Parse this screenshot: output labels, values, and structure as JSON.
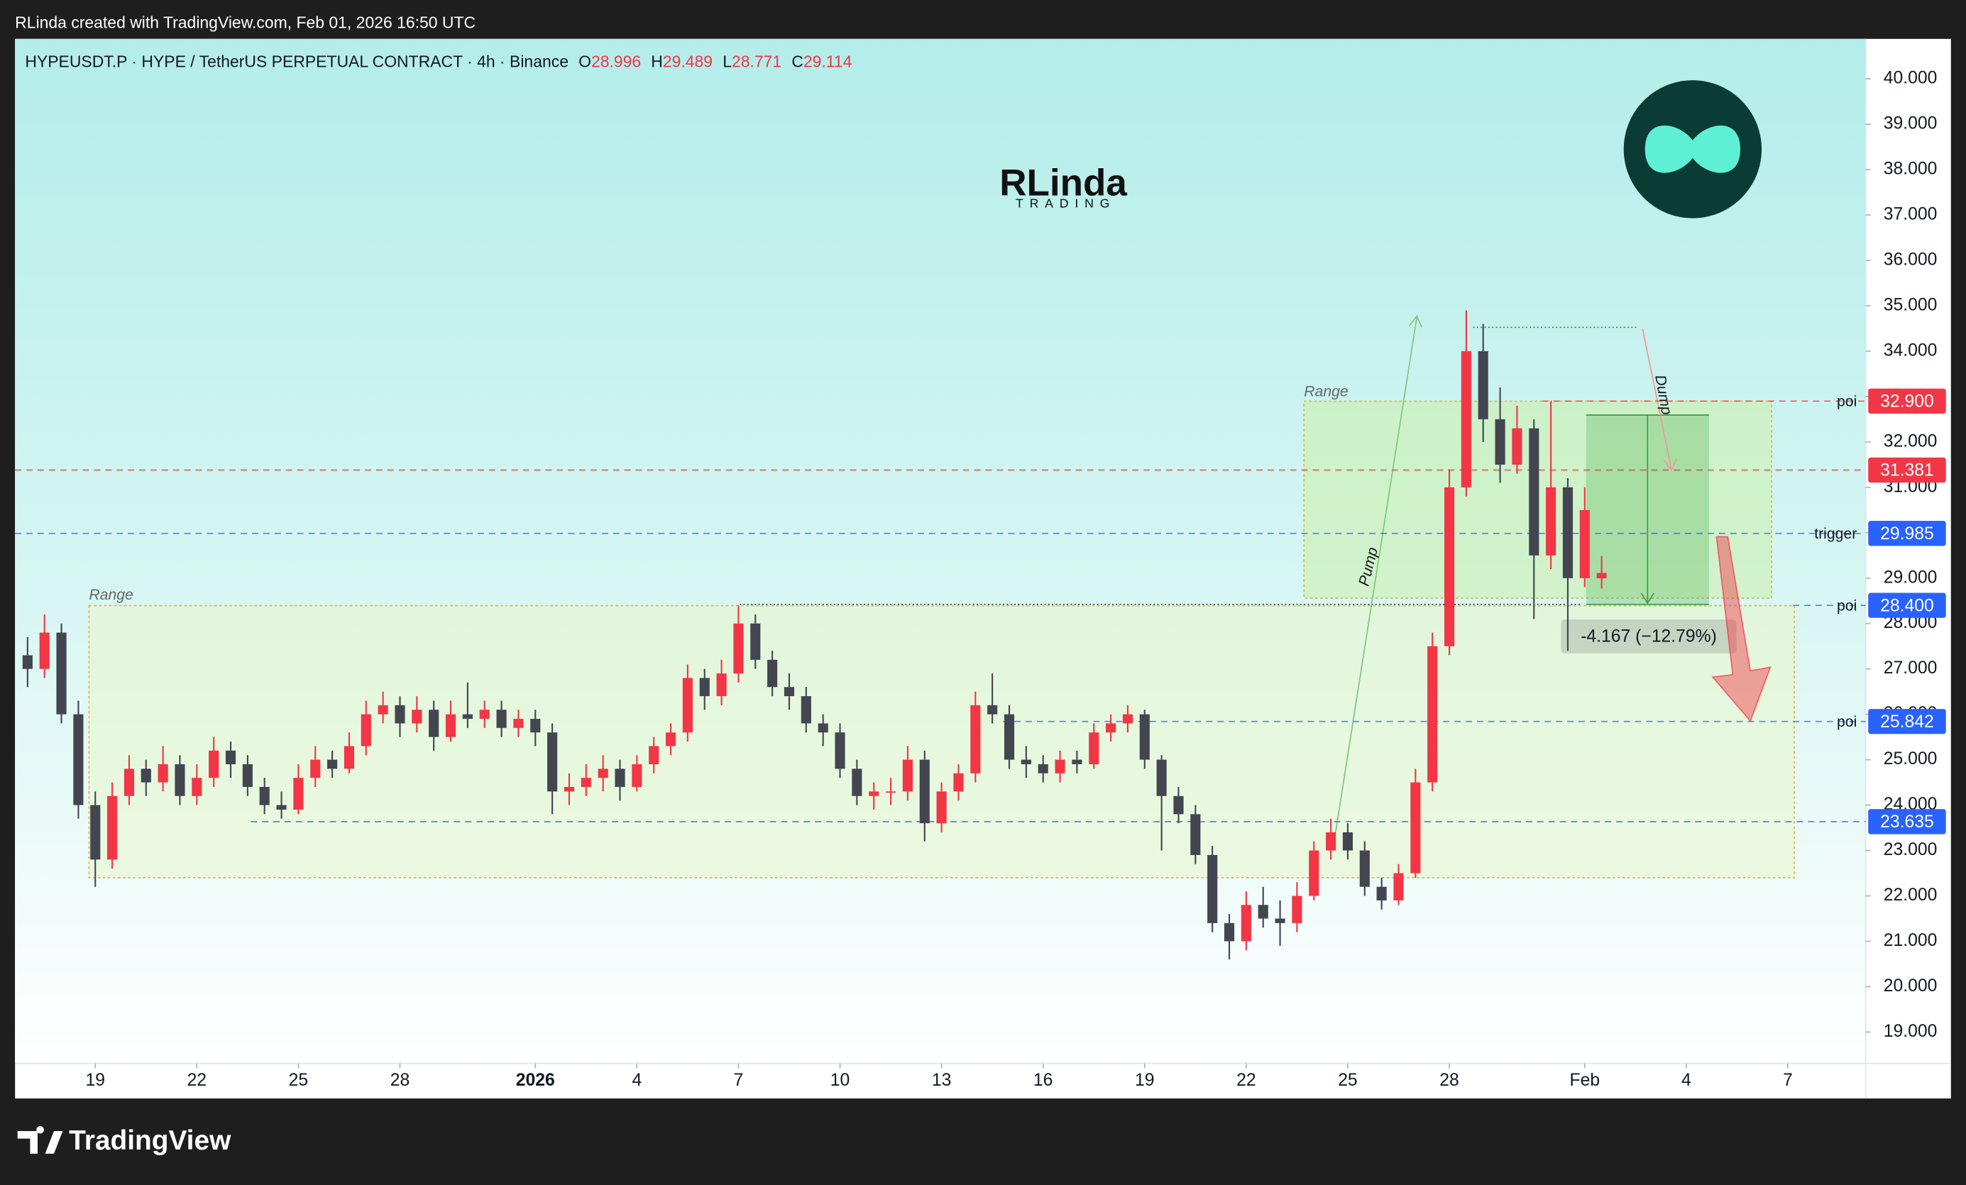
{
  "header": "RLinda created with TradingView.com, Feb 01, 2026 16:50 UTC",
  "footer_brand": "TradingView",
  "watermark": {
    "name": "RLinda",
    "tagline": "TRADING"
  },
  "chart_data": {
    "type": "candlestick",
    "title": "HYPEUSDT.P · HYPE / TetherUS PERPETUAL CONTRACT · 4h · Binance",
    "ohlc_labels": [
      "O",
      "H",
      "L",
      "C"
    ],
    "up_color": "#f23645",
    "down_color": "#434651",
    "x": [
      -2,
      -1.5,
      -1,
      -0.5,
      0,
      0.5,
      1,
      1.5,
      2,
      2.5,
      3,
      3.5,
      4,
      4.5,
      5,
      5.5,
      6,
      6.5,
      7,
      7.5,
      8,
      8.5,
      9,
      9.5,
      10,
      10.5,
      11,
      11.5,
      12,
      12.5,
      13,
      13.5,
      14,
      14.5,
      15,
      15.5,
      16,
      16.5,
      17,
      17.5,
      18,
      18.5,
      19,
      19.5,
      20,
      20.5,
      21,
      21.5,
      22,
      22.5,
      23,
      23.5,
      24,
      24.5,
      25,
      25.5,
      26,
      26.5,
      27,
      27.5,
      28,
      28.5,
      29,
      29.5,
      30,
      30.5,
      31,
      31.5,
      32,
      32.5,
      33,
      33.5,
      34,
      34.5,
      35,
      35.5,
      36,
      36.5,
      37,
      37.5,
      38,
      38.5,
      39,
      39.5,
      40,
      40.5,
      41,
      41.5,
      42,
      42.5,
      43,
      43.5,
      44,
      44.5
    ],
    "open": [
      27.3,
      27.0,
      27.8,
      26.0,
      24.0,
      22.8,
      24.2,
      24.8,
      24.5,
      24.9,
      24.2,
      24.6,
      25.2,
      24.9,
      24.4,
      24.0,
      23.9,
      24.6,
      25.0,
      24.8,
      25.3,
      26.0,
      26.2,
      25.8,
      26.1,
      25.5,
      26.0,
      25.9,
      26.1,
      25.7,
      25.9,
      25.6,
      24.3,
      24.4,
      24.6,
      24.8,
      24.4,
      24.9,
      25.3,
      25.6,
      26.8,
      26.4,
      26.9,
      28.0,
      27.2,
      26.6,
      26.4,
      25.8,
      25.6,
      24.8,
      24.2,
      24.3,
      24.3,
      25.0,
      23.6,
      24.3,
      24.7,
      26.2,
      26.0,
      25.0,
      24.9,
      24.7,
      25.0,
      24.9,
      25.6,
      25.8,
      26.0,
      25.0,
      24.2,
      23.8,
      22.9,
      21.4,
      21.0,
      21.8,
      21.5,
      21.4,
      22.0,
      23.0,
      23.4,
      23.0,
      22.2,
      21.9,
      22.5,
      24.5,
      27.5,
      31.0,
      34.0,
      32.5,
      31.5,
      32.3,
      29.5,
      31.0,
      29.0,
      28.996
    ],
    "high": [
      27.7,
      28.2,
      28.0,
      26.3,
      24.3,
      24.5,
      25.1,
      25.0,
      25.3,
      25.1,
      24.9,
      25.5,
      25.4,
      25.1,
      24.6,
      24.3,
      24.9,
      25.3,
      25.2,
      25.6,
      26.3,
      26.5,
      26.4,
      26.4,
      26.3,
      26.3,
      26.7,
      26.3,
      26.3,
      26.1,
      26.1,
      25.8,
      24.7,
      24.9,
      25.1,
      25.0,
      25.1,
      25.5,
      25.8,
      27.1,
      27.0,
      27.2,
      28.4,
      28.2,
      27.4,
      26.9,
      26.6,
      26.0,
      25.8,
      25.0,
      24.5,
      24.6,
      25.3,
      25.2,
      24.5,
      24.9,
      26.5,
      26.9,
      26.2,
      25.3,
      25.1,
      25.2,
      25.2,
      25.8,
      26.0,
      26.2,
      26.1,
      25.1,
      24.4,
      24.0,
      23.1,
      21.6,
      22.1,
      22.2,
      21.9,
      22.3,
      23.2,
      23.7,
      23.6,
      23.2,
      22.4,
      22.7,
      24.8,
      27.8,
      31.4,
      34.9,
      34.6,
      33.2,
      32.8,
      32.5,
      32.9,
      31.2,
      31.0,
      29.489
    ],
    "low": [
      26.6,
      26.8,
      25.8,
      23.7,
      22.2,
      22.6,
      24.0,
      24.2,
      24.3,
      24.0,
      24.0,
      24.4,
      24.6,
      24.2,
      23.8,
      23.7,
      23.8,
      24.4,
      24.6,
      24.7,
      25.1,
      25.8,
      25.5,
      25.6,
      25.2,
      25.4,
      25.7,
      25.7,
      25.5,
      25.5,
      25.3,
      23.8,
      24.0,
      24.2,
      24.3,
      24.1,
      24.3,
      24.7,
      25.1,
      25.4,
      26.1,
      26.2,
      26.7,
      27.0,
      26.4,
      26.1,
      25.6,
      25.3,
      24.6,
      24.0,
      23.9,
      24.0,
      24.1,
      23.2,
      23.4,
      24.1,
      24.5,
      25.8,
      24.8,
      24.6,
      24.5,
      24.5,
      24.7,
      24.8,
      25.4,
      25.6,
      24.8,
      23.0,
      23.6,
      22.7,
      21.2,
      20.6,
      20.8,
      21.3,
      20.9,
      21.2,
      21.9,
      22.8,
      22.8,
      22.0,
      21.7,
      21.8,
      22.4,
      24.3,
      27.3,
      30.8,
      32.0,
      31.1,
      31.3,
      28.1,
      29.2,
      27.4,
      28.8,
      28.771
    ],
    "close": [
      27.0,
      27.8,
      26.0,
      24.0,
      22.8,
      24.2,
      24.8,
      24.5,
      24.9,
      24.2,
      24.6,
      25.2,
      24.9,
      24.4,
      24.0,
      23.9,
      24.6,
      25.0,
      24.8,
      25.3,
      26.0,
      26.2,
      25.8,
      26.1,
      25.5,
      26.0,
      25.9,
      26.1,
      25.7,
      25.9,
      25.6,
      24.3,
      24.4,
      24.6,
      24.8,
      24.4,
      24.9,
      25.3,
      25.6,
      26.8,
      26.4,
      26.9,
      28.0,
      27.2,
      26.6,
      26.4,
      25.8,
      25.6,
      24.8,
      24.2,
      24.3,
      24.3,
      25.0,
      23.6,
      24.3,
      24.7,
      26.2,
      26.0,
      25.0,
      24.9,
      24.7,
      25.0,
      24.9,
      25.6,
      25.8,
      26.0,
      25.0,
      24.2,
      23.8,
      22.9,
      21.4,
      21.0,
      21.8,
      21.5,
      21.4,
      22.0,
      23.0,
      23.4,
      23.0,
      22.2,
      21.9,
      22.5,
      24.5,
      27.5,
      31.0,
      34.0,
      32.5,
      31.5,
      32.3,
      29.5,
      31.0,
      29.0,
      30.5,
      29.114
    ],
    "xlim": [
      -2.37,
      52.3
    ],
    "xticks": [
      {
        "value": 0,
        "label": "19"
      },
      {
        "value": 3,
        "label": "22"
      },
      {
        "value": 6,
        "label": "25"
      },
      {
        "value": 9,
        "label": "28"
      },
      {
        "value": 13,
        "label": "2026"
      },
      {
        "value": 16,
        "label": "4"
      },
      {
        "value": 19,
        "label": "7"
      },
      {
        "value": 22,
        "label": "10"
      },
      {
        "value": 25,
        "label": "13"
      },
      {
        "value": 28,
        "label": "16"
      },
      {
        "value": 31,
        "label": "19"
      },
      {
        "value": 34,
        "label": "22"
      },
      {
        "value": 37,
        "label": "25"
      },
      {
        "value": 40,
        "label": "28"
      },
      {
        "value": 44,
        "label": "Feb"
      },
      {
        "value": 47,
        "label": "4"
      },
      {
        "value": 50,
        "label": "7"
      }
    ],
    "ylim": [
      18.31,
      40.88
    ],
    "yticks": [
      {
        "value": 19,
        "label": "19.000"
      },
      {
        "value": 20,
        "label": "20.000"
      },
      {
        "value": 21,
        "label": "21.000"
      },
      {
        "value": 22,
        "label": "22.000"
      },
      {
        "value": 23,
        "label": "23.000"
      },
      {
        "value": 24,
        "label": "24.000"
      },
      {
        "value": 25,
        "label": "25.000"
      },
      {
        "value": 26,
        "label": "26.000"
      },
      {
        "value": 27,
        "label": "27.000"
      },
      {
        "value": 28,
        "label": "28.000"
      },
      {
        "value": 29,
        "label": "29.000"
      },
      {
        "value": 30,
        "label": "30.000"
      },
      {
        "value": 31,
        "label": "31.000"
      },
      {
        "value": 32,
        "label": "32.000"
      },
      {
        "value": 33,
        "label": "33.000"
      },
      {
        "value": 34,
        "label": "34.000"
      },
      {
        "value": 35,
        "label": "35.000"
      },
      {
        "value": 36,
        "label": "36.000"
      },
      {
        "value": 37,
        "label": "37.000"
      },
      {
        "value": 38,
        "label": "38.000"
      },
      {
        "value": 39,
        "label": "39.000"
      },
      {
        "value": 40,
        "label": "40.000"
      }
    ],
    "levels": [
      {
        "value": 32.9,
        "label": "32.900",
        "color": "#f23645",
        "tag": "poi"
      },
      {
        "value": 31.381,
        "label": "31.381",
        "color": "#f23645"
      },
      {
        "value": 29.985,
        "label": "29.985",
        "color": "#2962ff",
        "tag": "trigger"
      },
      {
        "value": 28.4,
        "label": "28.400",
        "color": "#2962ff",
        "tag": "poi"
      },
      {
        "value": 25.842,
        "label": "25.842",
        "color": "#2962ff",
        "tag": "poi"
      },
      {
        "value": 23.635,
        "label": "23.635",
        "color": "#2962ff"
      }
    ],
    "annotations": {
      "range_upper": "Range",
      "range_lower": "Range",
      "pump": "Pump",
      "dump": "Dump",
      "measure": "-4.167 (−12.79%)"
    }
  }
}
